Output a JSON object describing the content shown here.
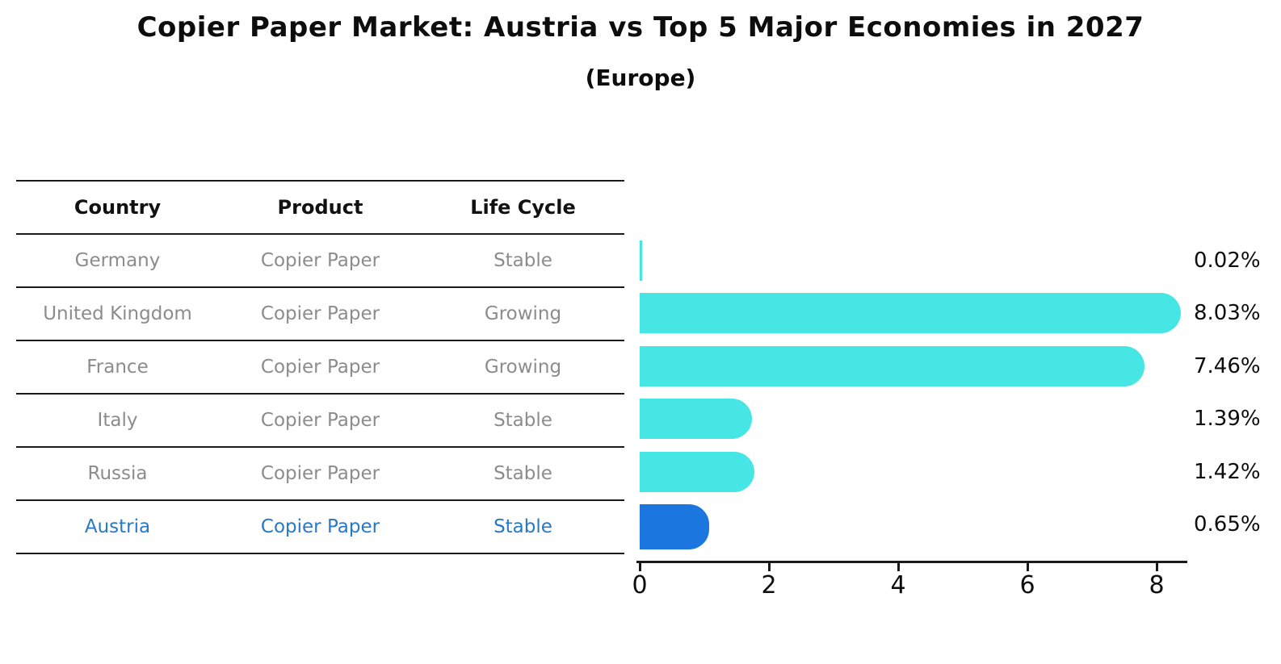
{
  "header": {
    "title": "Copier Paper Market: Austria vs Top 5 Major Economies in 2027",
    "subtitle": "(Europe)"
  },
  "table": {
    "headers": [
      "Country",
      "Product",
      "Life Cycle"
    ],
    "rows": [
      {
        "country": "Germany",
        "product": "Copier Paper",
        "life_cycle": "Stable",
        "highlight": false
      },
      {
        "country": "United Kingdom",
        "product": "Copier Paper",
        "life_cycle": "Growing",
        "highlight": false
      },
      {
        "country": "France",
        "product": "Copier Paper",
        "life_cycle": "Growing",
        "highlight": false
      },
      {
        "country": "Italy",
        "product": "Copier Paper",
        "life_cycle": "Stable",
        "highlight": false
      },
      {
        "country": "Russia",
        "product": "Copier Paper",
        "life_cycle": "Stable",
        "highlight": true
      }
    ],
    "highlight_row": {
      "country": "Austria",
      "product": "Copier Paper",
      "life_cycle": "Stable"
    }
  },
  "chart_data": {
    "type": "bar",
    "orientation": "horizontal",
    "title": "Copier Paper Market: Austria vs Top 5 Major Economies in 2027",
    "subtitle": "(Europe)",
    "categories": [
      "Germany",
      "United Kingdom",
      "France",
      "Italy",
      "Russia",
      "Austria"
    ],
    "values": [
      0.02,
      8.03,
      7.46,
      1.39,
      1.42,
      0.65
    ],
    "value_labels": [
      "0.02%",
      "8.03%",
      "7.46%",
      "1.39%",
      "1.42%",
      "0.65%"
    ],
    "highlight_index": 5,
    "xlabel": "",
    "ylabel": "",
    "xlim": [
      0,
      8.5
    ],
    "xticks": [
      0,
      2,
      4,
      6,
      8
    ],
    "grid": false,
    "legend": false,
    "bar_color": "#45e6e3",
    "highlight_color": "#1b76df",
    "highlight_text_color": "#2878c8"
  }
}
